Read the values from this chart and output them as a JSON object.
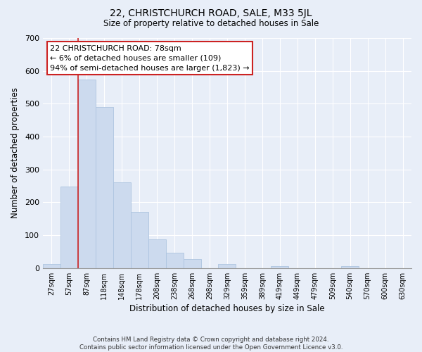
{
  "title": "22, CHRISTCHURCH ROAD, SALE, M33 5JL",
  "subtitle": "Size of property relative to detached houses in Sale",
  "xlabel": "Distribution of detached houses by size in Sale",
  "ylabel": "Number of detached properties",
  "bar_labels": [
    "27sqm",
    "57sqm",
    "87sqm",
    "118sqm",
    "148sqm",
    "178sqm",
    "208sqm",
    "238sqm",
    "268sqm",
    "298sqm",
    "329sqm",
    "359sqm",
    "389sqm",
    "419sqm",
    "449sqm",
    "479sqm",
    "509sqm",
    "540sqm",
    "570sqm",
    "600sqm",
    "630sqm"
  ],
  "bar_values": [
    12,
    247,
    574,
    491,
    261,
    170,
    88,
    47,
    27,
    0,
    12,
    0,
    0,
    5,
    0,
    0,
    0,
    5,
    0,
    0,
    0
  ],
  "bar_color": "#ccdaee",
  "bar_edge_color": "#adc4e0",
  "vline_color": "#cc2222",
  "ylim": [
    0,
    700
  ],
  "yticks": [
    0,
    100,
    200,
    300,
    400,
    500,
    600,
    700
  ],
  "annotation_title": "22 CHRISTCHURCH ROAD: 78sqm",
  "annotation_line1": "← 6% of detached houses are smaller (109)",
  "annotation_line2": "94% of semi-detached houses are larger (1,823) →",
  "footer_line1": "Contains HM Land Registry data © Crown copyright and database right 2024.",
  "footer_line2": "Contains public sector information licensed under the Open Government Licence v3.0.",
  "background_color": "#e8eef8",
  "plot_bg_color": "#e8eef8",
  "grid_color": "#ffffff"
}
